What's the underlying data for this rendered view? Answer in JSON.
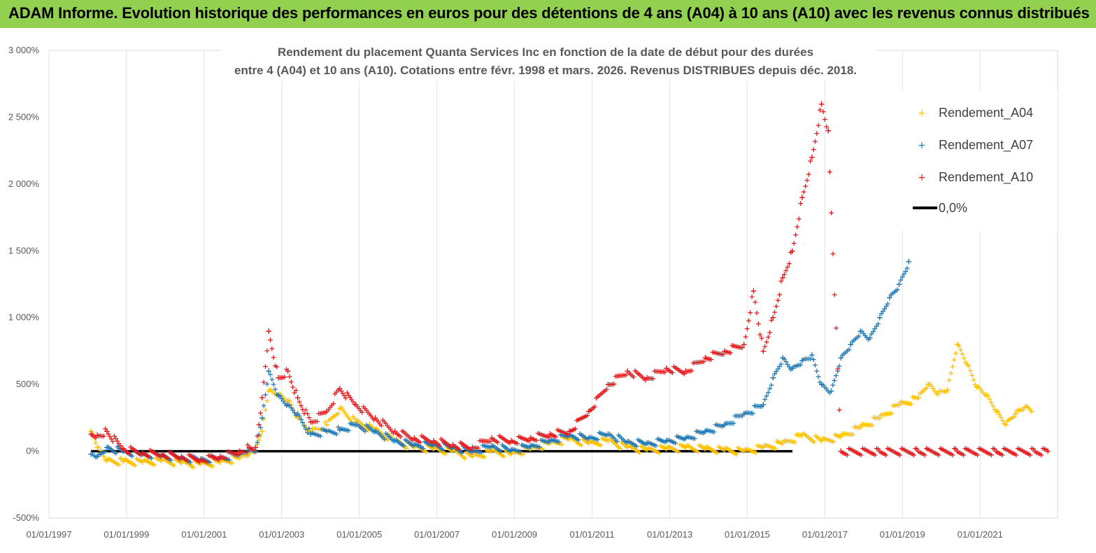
{
  "header": {
    "title": "ADAM Informe. Evolution historique des performances en euros pour des détentions de 4 ans (A04) à 10 ans (A10) avec les revenus connus distribués"
  },
  "chart_data": {
    "type": "scatter",
    "title_line1": "Rendement du placement Quanta Services Inc en fonction de la date de début pour des durées",
    "title_line2": "entre 4 (A04) et 10 ans (A10).  Cotations entre févr. 1998 et mars. 2026. Revenus DISTRIBUES depuis déc. 2018.",
    "x_axis": {
      "type": "date",
      "range": [
        "1997-01-01",
        "2022-12-31"
      ],
      "ticks": [
        "01/01/1997",
        "01/01/1999",
        "01/01/2001",
        "01/01/2003",
        "01/01/2005",
        "01/01/2007",
        "01/01/2009",
        "01/01/2011",
        "01/01/2013",
        "01/01/2015",
        "01/01/2017",
        "01/01/2019",
        "01/01/2021"
      ]
    },
    "y_axis": {
      "range": [
        -500,
        3000
      ],
      "unit": "%",
      "ticks": [
        "-500%",
        "0%",
        "500%",
        "1 000%",
        "1 500%",
        "2 000%",
        "2 500%",
        "3 000%"
      ]
    },
    "grid": "vertical",
    "legend_position": "top-right",
    "series": [
      {
        "name": "Rendement_A04",
        "color": "#FFC000",
        "marker": "plus",
        "points": [
          [
            "1998-02-01",
            150
          ],
          [
            "1998-04-01",
            30
          ],
          [
            "1998-07-01",
            -70
          ],
          [
            "1998-12-01",
            -75
          ],
          [
            "1999-06-01",
            -80
          ],
          [
            "1999-12-01",
            -70
          ],
          [
            "2000-06-01",
            -85
          ],
          [
            "2000-12-01",
            -95
          ],
          [
            "2001-06-01",
            -80
          ],
          [
            "2001-12-01",
            -50
          ],
          [
            "2002-03-01",
            -20
          ],
          [
            "2002-05-01",
            0
          ],
          [
            "2002-07-01",
            150
          ],
          [
            "2002-09-01",
            450
          ],
          [
            "2002-12-01",
            420
          ],
          [
            "2003-03-01",
            380
          ],
          [
            "2003-06-01",
            250
          ],
          [
            "2003-10-01",
            150
          ],
          [
            "2004-03-01",
            200
          ],
          [
            "2004-07-01",
            320
          ],
          [
            "2004-12-01",
            220
          ],
          [
            "2005-06-01",
            160
          ],
          [
            "2005-12-01",
            80
          ],
          [
            "2006-06-01",
            30
          ],
          [
            "2006-12-01",
            20
          ],
          [
            "2007-06-01",
            0
          ],
          [
            "2007-12-01",
            -40
          ],
          [
            "2008-06-01",
            0
          ],
          [
            "2008-12-01",
            -20
          ],
          [
            "2009-06-01",
            20
          ],
          [
            "2009-12-01",
            60
          ],
          [
            "2010-06-01",
            90
          ],
          [
            "2010-12-01",
            60
          ],
          [
            "2011-06-01",
            80
          ],
          [
            "2011-12-01",
            30
          ],
          [
            "2012-06-01",
            10
          ],
          [
            "2012-12-01",
            20
          ],
          [
            "2013-06-01",
            30
          ],
          [
            "2013-12-01",
            20
          ],
          [
            "2014-06-01",
            10
          ],
          [
            "2014-12-01",
            0
          ],
          [
            "2015-06-01",
            30
          ],
          [
            "2015-12-01",
            60
          ],
          [
            "2016-06-01",
            120
          ],
          [
            "2016-12-01",
            80
          ],
          [
            "2017-06-01",
            110
          ],
          [
            "2017-12-01",
            180
          ],
          [
            "2018-06-01",
            250
          ],
          [
            "2018-12-01",
            350
          ],
          [
            "2019-06-01",
            400
          ],
          [
            "2019-09-01",
            500
          ],
          [
            "2019-12-01",
            430
          ],
          [
            "2020-03-01",
            460
          ],
          [
            "2020-06-01",
            800
          ],
          [
            "2020-09-01",
            650
          ],
          [
            "2020-12-01",
            480
          ],
          [
            "2021-03-01",
            420
          ],
          [
            "2021-06-01",
            300
          ],
          [
            "2021-09-01",
            200
          ],
          [
            "2021-12-01",
            280
          ],
          [
            "2022-03-01",
            330
          ],
          [
            "2022-05-01",
            300
          ]
        ]
      },
      {
        "name": "Rendement_A07",
        "color": "#1F77B4",
        "marker": "plus",
        "points": [
          [
            "1998-02-01",
            -20
          ],
          [
            "1998-04-01",
            -40
          ],
          [
            "1998-07-01",
            30
          ],
          [
            "1998-12-01",
            0
          ],
          [
            "1999-06-01",
            -20
          ],
          [
            "1999-12-01",
            -30
          ],
          [
            "2000-06-01",
            -50
          ],
          [
            "2000-12-01",
            -60
          ],
          [
            "2001-06-01",
            -50
          ],
          [
            "2001-12-01",
            -20
          ],
          [
            "2002-03-01",
            20
          ],
          [
            "2002-05-01",
            0
          ],
          [
            "2002-07-01",
            250
          ],
          [
            "2002-09-01",
            600
          ],
          [
            "2002-12-01",
            420
          ],
          [
            "2003-03-01",
            350
          ],
          [
            "2003-06-01",
            280
          ],
          [
            "2003-10-01",
            130
          ],
          [
            "2004-03-01",
            150
          ],
          [
            "2004-07-01",
            160
          ],
          [
            "2004-12-01",
            200
          ],
          [
            "2005-06-01",
            150
          ],
          [
            "2005-12-01",
            80
          ],
          [
            "2006-06-01",
            50
          ],
          [
            "2006-12-01",
            50
          ],
          [
            "2007-06-01",
            30
          ],
          [
            "2007-12-01",
            0
          ],
          [
            "2008-06-01",
            40
          ],
          [
            "2008-12-01",
            10
          ],
          [
            "2009-06-01",
            40
          ],
          [
            "2009-12-01",
            80
          ],
          [
            "2010-06-01",
            120
          ],
          [
            "2010-12-01",
            100
          ],
          [
            "2011-06-01",
            130
          ],
          [
            "2011-12-01",
            70
          ],
          [
            "2012-06-01",
            60
          ],
          [
            "2012-12-01",
            80
          ],
          [
            "2013-06-01",
            100
          ],
          [
            "2013-12-01",
            150
          ],
          [
            "2014-06-01",
            200
          ],
          [
            "2014-12-01",
            280
          ],
          [
            "2015-06-01",
            350
          ],
          [
            "2015-09-01",
            550
          ],
          [
            "2015-12-01",
            700
          ],
          [
            "2016-03-01",
            620
          ],
          [
            "2016-06-01",
            680
          ],
          [
            "2016-09-01",
            720
          ],
          [
            "2016-12-01",
            500
          ],
          [
            "2017-03-01",
            450
          ],
          [
            "2017-06-01",
            700
          ],
          [
            "2017-09-01",
            800
          ],
          [
            "2017-12-01",
            900
          ],
          [
            "2018-03-01",
            850
          ],
          [
            "2018-06-01",
            1000
          ],
          [
            "2018-09-01",
            1150
          ],
          [
            "2018-12-01",
            1250
          ],
          [
            "2019-03-01",
            1420
          ]
        ]
      },
      {
        "name": "Rendement_A10",
        "color": "#E31A1C",
        "marker": "plus",
        "points": [
          [
            "1998-02-01",
            130
          ],
          [
            "1998-04-01",
            120
          ],
          [
            "1998-07-01",
            150
          ],
          [
            "1998-12-01",
            20
          ],
          [
            "1999-06-01",
            -10
          ],
          [
            "1999-12-01",
            -20
          ],
          [
            "2000-06-01",
            -40
          ],
          [
            "2000-12-01",
            -60
          ],
          [
            "2001-06-01",
            -40
          ],
          [
            "2001-12-01",
            0
          ],
          [
            "2002-03-01",
            30
          ],
          [
            "2002-05-01",
            30
          ],
          [
            "2002-07-01",
            400
          ],
          [
            "2002-09-01",
            900
          ],
          [
            "2002-12-01",
            550
          ],
          [
            "2003-03-01",
            600
          ],
          [
            "2003-06-01",
            400
          ],
          [
            "2003-10-01",
            220
          ],
          [
            "2004-03-01",
            300
          ],
          [
            "2004-07-01",
            470
          ],
          [
            "2004-12-01",
            350
          ],
          [
            "2005-06-01",
            250
          ],
          [
            "2005-12-01",
            150
          ],
          [
            "2006-06-01",
            100
          ],
          [
            "2006-12-01",
            80
          ],
          [
            "2007-06-01",
            50
          ],
          [
            "2007-12-01",
            30
          ],
          [
            "2008-06-01",
            100
          ],
          [
            "2008-12-01",
            80
          ],
          [
            "2009-06-01",
            100
          ],
          [
            "2009-12-01",
            130
          ],
          [
            "2010-06-01",
            150
          ],
          [
            "2010-12-01",
            300
          ],
          [
            "2011-06-01",
            500
          ],
          [
            "2011-12-01",
            600
          ],
          [
            "2012-06-01",
            550
          ],
          [
            "2012-12-01",
            620
          ],
          [
            "2013-06-01",
            600
          ],
          [
            "2013-12-01",
            700
          ],
          [
            "2014-06-01",
            750
          ],
          [
            "2014-12-01",
            800
          ],
          [
            "2015-03-01",
            1200
          ],
          [
            "2015-06-01",
            750
          ],
          [
            "2015-09-01",
            1000
          ],
          [
            "2015-12-01",
            1300
          ],
          [
            "2016-03-01",
            1500
          ],
          [
            "2016-06-01",
            1900
          ],
          [
            "2016-09-01",
            2200
          ],
          [
            "2016-12-01",
            2600
          ],
          [
            "2017-02-01",
            2400
          ],
          [
            "2017-06-01",
            0
          ],
          [
            "2018-06-01",
            0
          ],
          [
            "2019-06-01",
            0
          ],
          [
            "2020-06-01",
            0
          ],
          [
            "2021-06-01",
            0
          ],
          [
            "2022-06-01",
            0
          ],
          [
            "2022-10-01",
            0
          ]
        ]
      }
    ],
    "reference_line": {
      "name": "0,0%",
      "value": 0,
      "color": "#000000"
    }
  }
}
